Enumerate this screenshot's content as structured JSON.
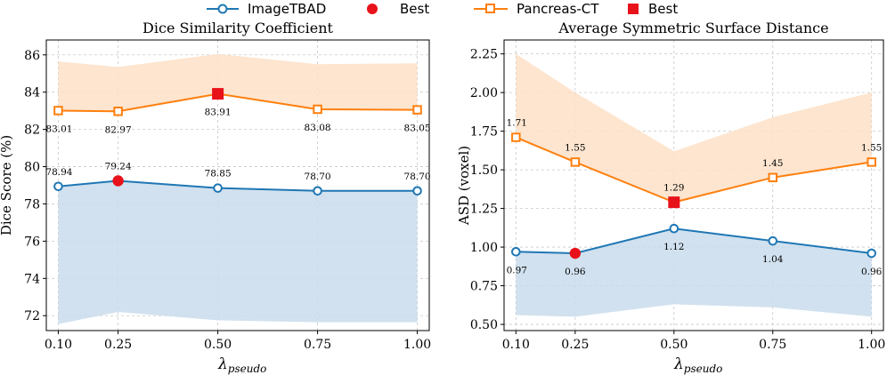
{
  "legend": [
    {
      "label": "ImageTBAD",
      "marker": "circle-open",
      "color": "#1f77b4"
    },
    {
      "label": "Best",
      "marker": "circle-filled",
      "color": "#e8121b"
    },
    {
      "label": "Pancreas-CT",
      "marker": "square-open",
      "color": "#ff7f0e"
    },
    {
      "label": "Best",
      "marker": "square-filled",
      "color": "#e8121b"
    }
  ],
  "colors": {
    "blue": "#1f77b4",
    "orange": "#ff7f0e",
    "best": "#e8121b",
    "blue_fill": "#c9dcec",
    "orange_fill": "#fde0c7"
  },
  "chart_data": [
    {
      "type": "line",
      "title": "Dice Similarity Coefficient",
      "xlabel": "λ",
      "xlabel_sub": "pseudo",
      "ylabel": "Dice Score (%)",
      "categories": [
        "0.10",
        "0.25",
        "0.50",
        "0.75",
        "1.00"
      ],
      "x": [
        0.1,
        0.25,
        0.5,
        0.75,
        1.0
      ],
      "xlim": [
        0.07,
        1.03
      ],
      "ylim": [
        71.2,
        86.8
      ],
      "yticks": [
        72,
        74,
        76,
        78,
        80,
        82,
        84,
        86
      ],
      "ytick_labels": [
        "72",
        "74",
        "76",
        "78",
        "80",
        "82",
        "84",
        "86"
      ],
      "grid": true,
      "series": [
        {
          "name": "ImageTBAD",
          "color": "#1f77b4",
          "marker": "circle",
          "values": [
            78.94,
            79.24,
            78.85,
            78.7,
            78.7
          ],
          "labels": [
            "78.94",
            "79.24",
            "78.85",
            "78.70",
            "78.70"
          ],
          "label_position": "above",
          "band_low": [
            71.55,
            72.2,
            71.75,
            71.65,
            71.65
          ],
          "band_high": [
            78.94,
            79.24,
            78.85,
            78.7,
            78.7
          ],
          "best_index": 1
        },
        {
          "name": "Pancreas-CT",
          "color": "#ff7f0e",
          "marker": "square",
          "values": [
            83.01,
            82.97,
            83.91,
            83.08,
            83.05
          ],
          "labels": [
            "83.01",
            "82.97",
            "83.91",
            "83.08",
            "83.05"
          ],
          "label_position": "below",
          "band_low": [
            83.01,
            82.97,
            83.91,
            83.08,
            83.05
          ],
          "band_high": [
            85.65,
            85.35,
            86.05,
            85.5,
            85.55
          ],
          "best_index": 2
        }
      ]
    },
    {
      "type": "line",
      "title": "Average Symmetric Surface Distance",
      "xlabel": "λ",
      "xlabel_sub": "pseudo",
      "ylabel": "ASD (voxel)",
      "categories": [
        "0.10",
        "0.25",
        "0.50",
        "0.75",
        "1.00"
      ],
      "x": [
        0.1,
        0.25,
        0.5,
        0.75,
        1.0
      ],
      "xlim": [
        0.07,
        1.03
      ],
      "ylim": [
        0.46,
        2.34
      ],
      "yticks": [
        0.5,
        0.75,
        1.0,
        1.25,
        1.5,
        1.75,
        2.0,
        2.25
      ],
      "ytick_labels": [
        "0.50",
        "0.75",
        "1.00",
        "1.25",
        "1.50",
        "1.75",
        "2.00",
        "2.25"
      ],
      "grid": true,
      "series": [
        {
          "name": "ImageTBAD",
          "color": "#1f77b4",
          "marker": "circle",
          "values": [
            0.97,
            0.96,
            1.12,
            1.04,
            0.96
          ],
          "labels": [
            "0.97",
            "0.96",
            "1.12",
            "1.04",
            "0.96"
          ],
          "label_position": "below",
          "band_low": [
            0.56,
            0.55,
            0.63,
            0.61,
            0.55
          ],
          "band_high": [
            0.97,
            0.96,
            1.12,
            1.04,
            0.96
          ],
          "best_index": 1
        },
        {
          "name": "Pancreas-CT",
          "color": "#ff7f0e",
          "marker": "square",
          "values": [
            1.71,
            1.55,
            1.29,
            1.45,
            1.55
          ],
          "labels": [
            "1.71",
            "1.55",
            "1.29",
            "1.45",
            "1.55"
          ],
          "label_position": "above",
          "band_low": [
            1.71,
            1.55,
            1.29,
            1.45,
            1.55
          ],
          "band_high": [
            2.25,
            2.0,
            1.62,
            1.84,
            2.0
          ],
          "best_index": 2
        }
      ]
    }
  ]
}
